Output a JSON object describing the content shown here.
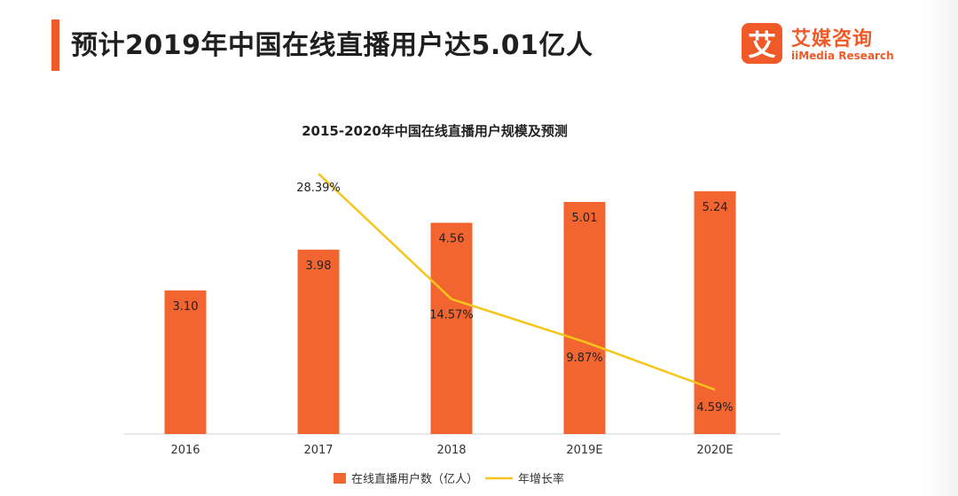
{
  "header": {
    "title": "预计2019年中国在线直播用户达5.01亿人"
  },
  "logo": {
    "mark": "艾",
    "name_cn": "艾媒咨询",
    "name_en": "iiMedia Research"
  },
  "colors": {
    "accent": "#f05a28",
    "bar": "#f26430",
    "line": "#f5c518"
  },
  "chart_data": {
    "type": "bar",
    "title": "2015-2020年中国在线直播用户规模及预测",
    "categories": [
      "2016",
      "2017",
      "2018",
      "2019E",
      "2020E"
    ],
    "series": [
      {
        "name": "在线直播用户数（亿人）",
        "type": "bar",
        "values": [
          3.1,
          3.98,
          4.56,
          5.01,
          5.24
        ],
        "labels": [
          "3.10",
          "3.98",
          "4.56",
          "5.01",
          "5.24"
        ]
      },
      {
        "name": "年增长率",
        "type": "line",
        "values": [
          null,
          28.39,
          14.57,
          9.87,
          4.59
        ],
        "labels": [
          "",
          "28.39%",
          "14.57%",
          "9.87%",
          "4.59%"
        ]
      }
    ],
    "bar_ylim": [
      0,
      7
    ],
    "line_ylim": [
      0,
      30
    ],
    "legend_position": "bottom-center",
    "grid": false
  }
}
